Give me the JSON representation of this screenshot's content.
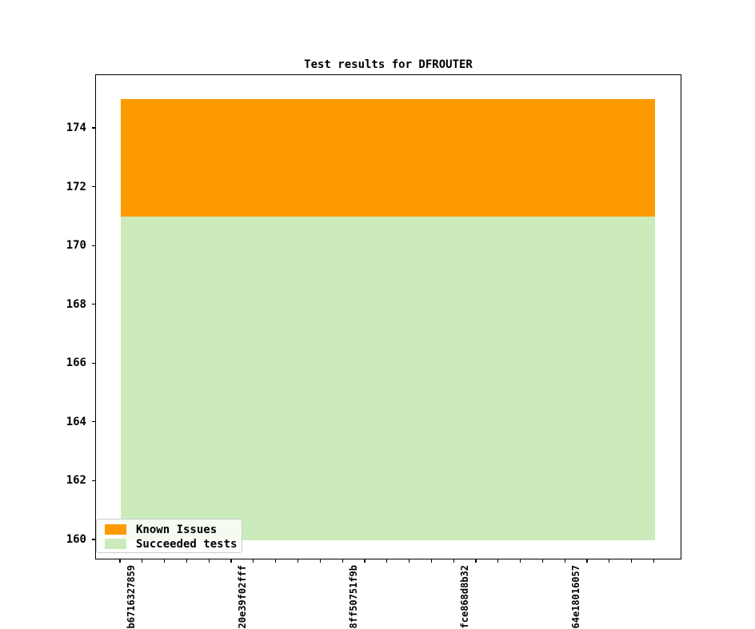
{
  "figure": {
    "title": "Test results for DFROUTER"
  },
  "chart_data": {
    "type": "area",
    "stacked": true,
    "title": "Test results for DFROUTER",
    "xlabel": "",
    "ylabel": "",
    "grid": false,
    "x_point_count": 25,
    "x_tick_labels": [
      {
        "index": 0,
        "label": "b6716327859"
      },
      {
        "index": 5,
        "label": "2-20e39f02fff"
      },
      {
        "index": 10,
        "label": "-8ff50751f9b"
      },
      {
        "index": 15,
        "label": "-fce868d8b32"
      },
      {
        "index": 20,
        "label": "64e18016057"
      }
    ],
    "y_ticks": [
      160,
      162,
      164,
      166,
      168,
      170,
      172,
      174
    ],
    "ylim": [
      159.32,
      175.82
    ],
    "series": [
      {
        "name": "Succeeded tests",
        "color": "#cbecba",
        "band_bottom": 160,
        "band_top": 171,
        "values": [
          171,
          171,
          171,
          171,
          171,
          171,
          171,
          171,
          171,
          171,
          171,
          171,
          171,
          171,
          171,
          171,
          171,
          171,
          171,
          171,
          171,
          171,
          171,
          171,
          171
        ]
      },
      {
        "name": "Known Issues",
        "color": "#fc9a00",
        "band_bottom": 171,
        "band_top": 175,
        "values": [
          4,
          4,
          4,
          4,
          4,
          4,
          4,
          4,
          4,
          4,
          4,
          4,
          4,
          4,
          4,
          4,
          4,
          4,
          4,
          4,
          4,
          4,
          4,
          4,
          4
        ]
      }
    ],
    "legend": {
      "position": "lower left",
      "entries": [
        {
          "label": "Known Issues",
          "color": "#fc9a00"
        },
        {
          "label": "Succeeded tests",
          "color": "#cbecba"
        }
      ]
    }
  }
}
